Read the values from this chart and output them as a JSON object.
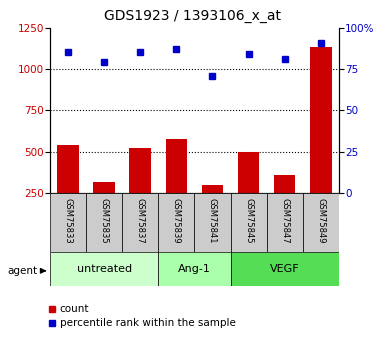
{
  "title": "GDS1923 / 1393106_x_at",
  "samples": [
    "GSM75833",
    "GSM75835",
    "GSM75837",
    "GSM75839",
    "GSM75841",
    "GSM75845",
    "GSM75847",
    "GSM75849"
  ],
  "counts": [
    540,
    320,
    520,
    580,
    300,
    500,
    360,
    1130
  ],
  "percentiles": [
    85,
    79,
    85,
    87,
    71,
    84,
    81,
    91
  ],
  "groups": [
    {
      "label": "untreated",
      "start": 0,
      "end": 3,
      "color": "#ccffcc"
    },
    {
      "label": "Ang-1",
      "start": 3,
      "end": 5,
      "color": "#aaffaa"
    },
    {
      "label": "VEGF",
      "start": 5,
      "end": 8,
      "color": "#55dd55"
    }
  ],
  "bar_color": "#cc0000",
  "dot_color": "#0000cc",
  "left_ylim": [
    250,
    1250
  ],
  "right_ylim": [
    0,
    100
  ],
  "left_yticks": [
    250,
    500,
    750,
    1000,
    1250
  ],
  "right_yticks": [
    0,
    25,
    50,
    75,
    100
  ],
  "right_yticklabels": [
    "0",
    "25",
    "50",
    "75",
    "100%"
  ],
  "grid_values": [
    500,
    750,
    1000
  ],
  "background_color": "#ffffff",
  "tick_label_color_left": "#cc0000",
  "tick_label_color_right": "#0000cc",
  "agent_label": "agent",
  "legend_count": "count",
  "legend_percentile": "percentile rank within the sample",
  "sample_box_color": "#cccccc",
  "figsize": [
    3.85,
    3.45
  ],
  "dpi": 100
}
